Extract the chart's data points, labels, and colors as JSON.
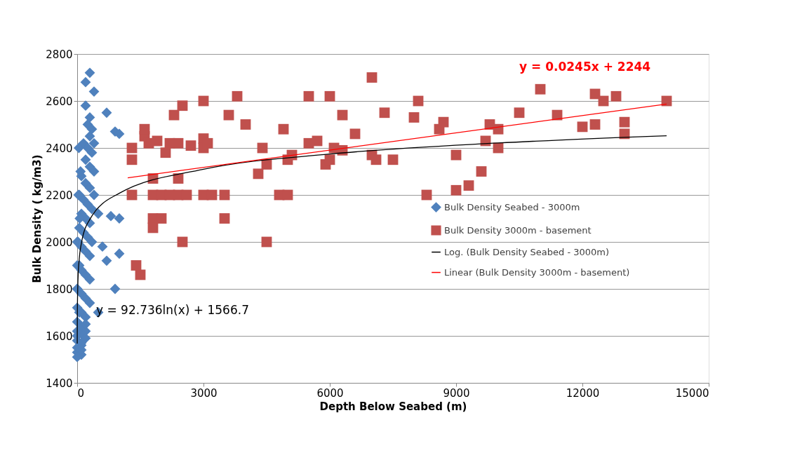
{
  "chart_data": {
    "type": "scatter",
    "xlabel": "Depth Below Seabed (m)",
    "ylabel": "Bulk Density ( kg/m3)",
    "xlim": [
      0,
      15000
    ],
    "xticks": [
      0,
      3000,
      6000,
      9000,
      12000,
      15000
    ],
    "ylim": [
      1400,
      2800
    ],
    "yticks": [
      1400,
      1600,
      1800,
      2000,
      2200,
      2400,
      2600,
      2800
    ],
    "grid": "y",
    "legend": "right",
    "series": [
      {
        "name": "Bulk Density Seabed - 3000m",
        "color": "#4f81bd",
        "marker": "diamond",
        "x": [
          300,
          200,
          400,
          700,
          900,
          1000,
          500,
          800,
          1000,
          600,
          700,
          1000,
          900,
          500,
          200,
          300,
          250,
          350,
          300,
          400,
          150,
          250,
          350,
          200,
          300,
          400,
          100,
          200,
          300,
          400,
          50,
          150,
          250,
          350,
          100,
          200,
          300,
          50,
          150,
          250,
          350,
          0,
          100,
          200,
          300,
          0,
          100,
          200,
          300,
          0,
          100,
          200,
          300,
          0,
          100,
          200,
          0,
          100,
          200,
          0,
          100,
          200,
          0,
          100,
          200,
          0,
          100,
          0,
          100,
          0,
          100,
          0,
          50,
          0,
          50,
          20,
          60,
          30,
          80,
          40
        ],
        "values": [
          2720,
          2680,
          2640,
          2550,
          2470,
          2460,
          2120,
          2110,
          2100,
          1980,
          1920,
          1950,
          1800,
          1700,
          2580,
          2530,
          2500,
          2480,
          2450,
          2420,
          2420,
          2400,
          2380,
          2350,
          2320,
          2300,
          2280,
          2250,
          2230,
          2200,
          2200,
          2180,
          2160,
          2140,
          2120,
          2100,
          2080,
          2060,
          2040,
          2020,
          2000,
          2000,
          1980,
          1960,
          1940,
          1900,
          1880,
          1860,
          1840,
          1800,
          1780,
          1760,
          1740,
          1720,
          1700,
          1680,
          1660,
          1640,
          1620,
          1600,
          1610,
          1650,
          1580,
          1560,
          1590,
          1550,
          1570,
          1530,
          1520,
          1510,
          1540,
          1620,
          1700,
          1800,
          1900,
          2000,
          2100,
          2200,
          2300,
          2400
        ]
      },
      {
        "name": "Bulk Density 3000m - basement",
        "color": "#c0504d",
        "marker": "square",
        "x": [
          1300,
          1300,
          1300,
          1400,
          1500,
          1600,
          1600,
          1700,
          1800,
          1800,
          1800,
          1800,
          1900,
          2000,
          2000,
          2100,
          2200,
          2200,
          2300,
          2400,
          2400,
          2400,
          2500,
          2500,
          2600,
          2700,
          3000,
          3000,
          3000,
          3000,
          3100,
          3200,
          3500,
          3500,
          3600,
          3800,
          4000,
          4300,
          4400,
          4500,
          4500,
          4800,
          4900,
          5000,
          5000,
          5100,
          5500,
          5500,
          5700,
          5900,
          6000,
          6000,
          6100,
          6300,
          6300,
          6600,
          7000,
          7000,
          7100,
          7300,
          7500,
          8000,
          8100,
          8300,
          8600,
          8700,
          9000,
          9000,
          9300,
          9600,
          9700,
          9800,
          10000,
          10000,
          10500,
          11000,
          11400,
          12000,
          12300,
          12300,
          12500,
          12800,
          13000,
          13000,
          14000
        ],
        "values": [
          2350,
          2400,
          2200,
          1900,
          1860,
          2450,
          2480,
          2420,
          2270,
          2200,
          2100,
          2060,
          2430,
          2100,
          2200,
          2380,
          2420,
          2200,
          2540,
          2420,
          2270,
          2200,
          2000,
          2580,
          2200,
          2410,
          2600,
          2440,
          2400,
          2200,
          2420,
          2200,
          2200,
          2100,
          2540,
          2620,
          2500,
          2290,
          2400,
          2330,
          2000,
          2200,
          2480,
          2200,
          2350,
          2370,
          2620,
          2420,
          2430,
          2330,
          2620,
          2350,
          2400,
          2540,
          2390,
          2460,
          2700,
          2370,
          2350,
          2550,
          2350,
          2530,
          2600,
          2200,
          2480,
          2510,
          2220,
          2370,
          2240,
          2300,
          2430,
          2500,
          2400,
          2480,
          2550,
          2650,
          2540,
          2490,
          2500,
          2630,
          2600,
          2620,
          2510,
          2460,
          2600
        ]
      },
      {
        "name": "Log. (Bulk Density Seabed - 3000m)",
        "type": "line",
        "color": "#000000",
        "x": [
          1,
          5,
          20,
          50,
          100,
          300,
          1000,
          3000,
          6000,
          10000,
          14000
        ],
        "values": [
          1567,
          1716,
          1844,
          1930,
          1994,
          2096,
          2207,
          2309,
          2374,
          2421,
          2452
        ]
      },
      {
        "name": "Linear (Bulk Density 3000m - basement)",
        "type": "line",
        "color": "#ff0000",
        "x": [
          1200,
          14000
        ],
        "values": [
          2273,
          2587
        ]
      }
    ],
    "annotations": [
      "y = 92.736ln(x) + 1566.7",
      "y = 0.0245x + 2244"
    ]
  }
}
